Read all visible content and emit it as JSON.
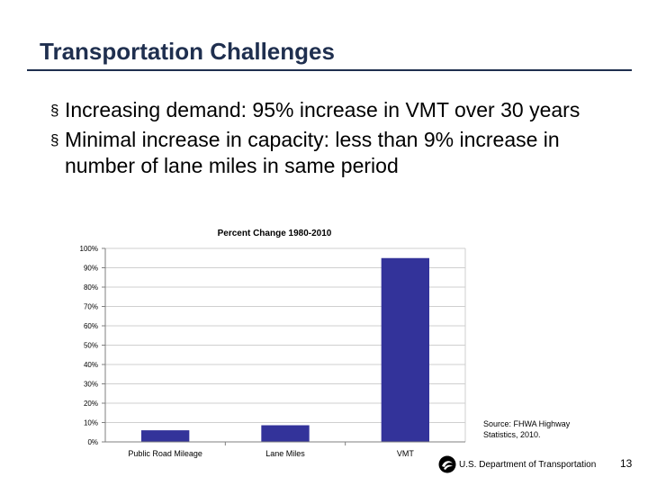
{
  "slide": {
    "title": "Transportation Challenges",
    "bullets": [
      {
        "text": "Increasing demand: 95% increase in VMT over 30 years"
      },
      {
        "text": "Minimal increase in capacity: less than 9% increase in number of lane miles in same period"
      }
    ],
    "source": "Source: FHWA Highway Statistics, 2010.",
    "footer_org": "U.S. Department of Transportation",
    "page_number": "13",
    "bullet_glyph": "§",
    "logo_icon": "dot-logo-icon"
  },
  "colors": {
    "title": "#1f2f4f",
    "bar": "#33339a",
    "grid": "#cfcfcf",
    "axis": "#7f7f7f"
  },
  "chart_data": {
    "type": "bar",
    "title": "Percent Change 1980-2010",
    "categories": [
      "Public Road Mileage",
      "Lane Miles",
      "VMT"
    ],
    "values": [
      6,
      8.6,
      95
    ],
    "ylim": [
      0,
      100
    ],
    "yticks": [
      0,
      10,
      20,
      30,
      40,
      50,
      60,
      70,
      80,
      90,
      100
    ],
    "ytick_labels": [
      "0%",
      "10%",
      "20%",
      "30%",
      "40%",
      "50%",
      "60%",
      "70%",
      "80%",
      "90%",
      "100%"
    ],
    "xlabel": "",
    "ylabel": "",
    "grid": true,
    "legend": "none"
  }
}
